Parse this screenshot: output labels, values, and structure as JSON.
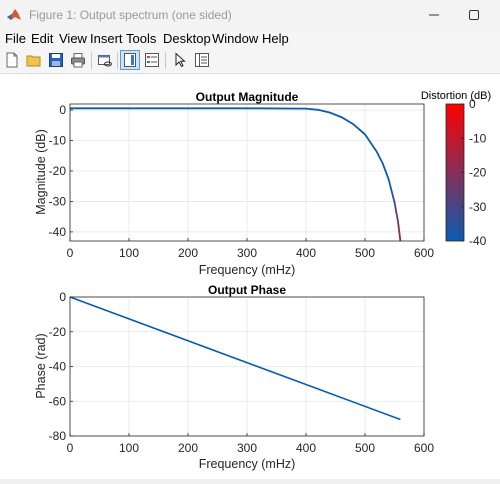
{
  "window": {
    "title": "Figure 1: Output spectrum (one sided)"
  },
  "menu": [
    "File",
    "Edit",
    "View",
    "Insert",
    "Tools",
    "Desktop",
    "Window",
    "Help"
  ],
  "toolbar": {
    "buttons": [
      "new-figure-icon",
      "open-file-icon",
      "save-icon",
      "print-icon",
      "link-plot-icon",
      "colorbar-icon",
      "legend-icon",
      "edit-plot-icon",
      "property-inspector-icon"
    ],
    "pressed": "colorbar-icon"
  },
  "chart_data": [
    {
      "type": "line",
      "title": "Output Magnitude",
      "xlabel": "Frequency (mHz)",
      "ylabel": "Magnitude (dB)",
      "xlim": [
        0,
        600
      ],
      "ylim": [
        -43,
        2
      ],
      "xticks": [
        0,
        100,
        200,
        300,
        400,
        500,
        600
      ],
      "yticks": [
        0,
        -10,
        -20,
        -30,
        -40
      ],
      "grid": true,
      "series": [
        {
          "x": [
            0,
            100,
            200,
            300,
            400,
            420,
            440,
            460,
            480,
            500,
            520,
            530,
            540,
            550,
            556,
            560
          ],
          "y": [
            0.6,
            0.6,
            0.6,
            0.6,
            0.5,
            0.1,
            -0.8,
            -2.3,
            -4.6,
            -8,
            -13.7,
            -17.5,
            -22.7,
            -30.3,
            -36.6,
            -43
          ]
        }
      ],
      "colorbar": {
        "label": "Distortion (dB)",
        "ticks": [
          0,
          -10,
          -20,
          -30,
          -40
        ],
        "range": [
          -40,
          0
        ],
        "colors": [
          "#ff0000",
          "#0a5cb0"
        ]
      }
    },
    {
      "type": "line",
      "title": "Output Phase",
      "xlabel": "Frequency (mHz)",
      "ylabel": "Phase (rad)",
      "xlim": [
        0,
        600
      ],
      "ylim": [
        -80,
        0
      ],
      "xticks": [
        0,
        100,
        200,
        300,
        400,
        500,
        600
      ],
      "yticks": [
        0,
        -20,
        -40,
        -60,
        -80
      ],
      "grid": true,
      "series": [
        {
          "x": [
            0,
            560
          ],
          "y": [
            0,
            -70.5
          ]
        }
      ]
    }
  ]
}
